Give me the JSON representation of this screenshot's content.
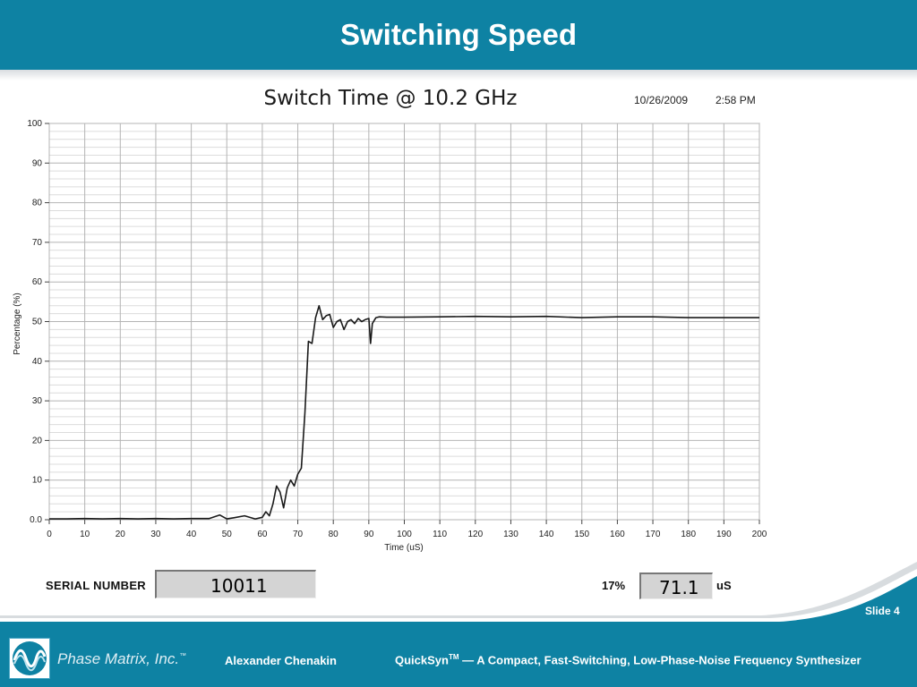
{
  "slide": {
    "title": "Switching Speed",
    "number": "Slide 4"
  },
  "chart_header": {
    "date": "10/26/2009",
    "time": "2:58 PM"
  },
  "readout": {
    "serial_label": "SERIAL NUMBER",
    "serial_value": "10011",
    "percent_label": "17%",
    "time_value": "71.1",
    "unit": "uS"
  },
  "footer": {
    "company": "Phase Matrix, Inc.",
    "company_tm": "™",
    "author": "Alexander Chenakin",
    "product_name": "QuickSyn",
    "product_tm": "TM",
    "product_rest": " — A Compact, Fast-Switching, Low-Phase-Noise Frequency Synthesizer"
  },
  "colors": {
    "header_bg": "#0e82a3",
    "trace": "#1a1a1a",
    "grid": "#b4b4b4"
  },
  "chart_data": {
    "type": "line",
    "title": "Switch Time @ 10.2 GHz",
    "xlabel": "Time (uS)",
    "ylabel": "Percentage (%)",
    "xlim": [
      0,
      200
    ],
    "ylim": [
      0,
      100
    ],
    "x_ticks": [
      0,
      10,
      20,
      30,
      40,
      50,
      60,
      70,
      80,
      90,
      100,
      110,
      120,
      130,
      140,
      150,
      160,
      170,
      180,
      190,
      200
    ],
    "y_ticks": [
      0,
      10,
      20,
      30,
      40,
      50,
      60,
      70,
      80,
      90,
      100
    ],
    "y_tick_labels": [
      "0.0",
      "10",
      "20",
      "30",
      "40",
      "50",
      "60",
      "70",
      "80",
      "90",
      "100"
    ],
    "grid": true,
    "series": [
      {
        "x": [
          0,
          5,
          10,
          15,
          20,
          25,
          30,
          35,
          40,
          45,
          48,
          50,
          52,
          55,
          58,
          60,
          61,
          62,
          63,
          64,
          65,
          66,
          67,
          68,
          69,
          70,
          71,
          72,
          73,
          74,
          75,
          76,
          77,
          78,
          79,
          80,
          81,
          82,
          83,
          84,
          85,
          86,
          87,
          88,
          89,
          90,
          90.5,
          91,
          92,
          93,
          95,
          100,
          110,
          120,
          130,
          140,
          150,
          160,
          170,
          180,
          190,
          200
        ],
        "y": [
          0.2,
          0.2,
          0.3,
          0.2,
          0.3,
          0.2,
          0.3,
          0.2,
          0.3,
          0.3,
          1.2,
          0.2,
          0.5,
          1.0,
          0.2,
          0.6,
          2.0,
          1.0,
          4.0,
          8.5,
          7.0,
          3.0,
          8.0,
          10.0,
          8.5,
          11.5,
          13.0,
          27.0,
          45.0,
          44.5,
          51.0,
          54.0,
          50.5,
          51.5,
          51.8,
          48.5,
          50.0,
          50.5,
          48.0,
          50.0,
          50.5,
          49.5,
          50.8,
          50.0,
          50.5,
          50.8,
          44.5,
          49.5,
          51.0,
          51.2,
          51.1,
          51.1,
          51.2,
          51.3,
          51.2,
          51.3,
          51.0,
          51.2,
          51.2,
          51.0,
          51.0,
          51.0
        ]
      }
    ]
  }
}
